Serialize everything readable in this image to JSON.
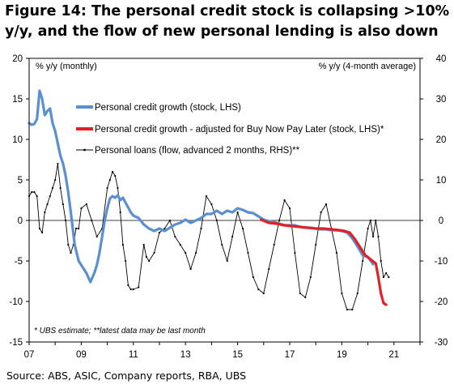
{
  "title": "Figure 14: The personal credit stock is collapsing >10% y/y, and the flow of new personal lending is also down",
  "source": "Source:  ABS, ASIC, Company reports, RBA, UBS",
  "colors": {
    "stock": "#5b8fd0",
    "adjusted": "#e32026",
    "flow": "#000000"
  },
  "chart_data": {
    "type": "line",
    "xlabel": "",
    "y_left_label": "% y/y (monthly)",
    "y_right_label": "% y/y (4-month average)",
    "note": "* UBS estimate; **latest data  may be last month",
    "xlim": [
      2007.0,
      2022.0
    ],
    "ylim_left": [
      -15,
      20
    ],
    "ylim_right": [
      -30,
      40
    ],
    "x_ticks": [
      {
        "value": 2007,
        "label": "07"
      },
      {
        "value": 2009,
        "label": "09"
      },
      {
        "value": 2011,
        "label": "11"
      },
      {
        "value": 2013,
        "label": "13"
      },
      {
        "value": 2015,
        "label": "15"
      },
      {
        "value": 2017,
        "label": "17"
      },
      {
        "value": 2019,
        "label": "19"
      },
      {
        "value": 2021,
        "label": "21"
      }
    ],
    "y_left_ticks": [
      {
        "value": 20,
        "label": "20"
      },
      {
        "value": 15,
        "label": "15"
      },
      {
        "value": 10,
        "label": "10"
      },
      {
        "value": 5,
        "label": "5"
      },
      {
        "value": 0,
        "label": "0"
      },
      {
        "value": -5,
        "label": "-5"
      },
      {
        "value": -10,
        "label": "-10"
      },
      {
        "value": -15,
        "label": "-15"
      }
    ],
    "y_right_ticks": [
      {
        "value": 40,
        "label": "40"
      },
      {
        "value": 30,
        "label": "30"
      },
      {
        "value": 20,
        "label": "20"
      },
      {
        "value": 10,
        "label": "10"
      },
      {
        "value": 0,
        "label": "0"
      },
      {
        "value": -10,
        "label": "-10"
      },
      {
        "value": -20,
        "label": "-20"
      },
      {
        "value": -30,
        "label": "-30"
      }
    ],
    "legend_position": "upper-middle",
    "series": [
      {
        "name": "Personal credit growth (stock, LHS)",
        "axis": "left",
        "x": [
          2007.0,
          2007.1,
          2007.2,
          2007.3,
          2007.4,
          2007.5,
          2007.6,
          2007.7,
          2007.8,
          2007.9,
          2008.0,
          2008.1,
          2008.2,
          2008.3,
          2008.4,
          2008.5,
          2008.6,
          2008.75,
          2008.9,
          2009.0,
          2009.2,
          2009.35,
          2009.5,
          2009.6,
          2009.7,
          2009.8,
          2009.9,
          2010.0,
          2010.1,
          2010.2,
          2010.3,
          2010.4,
          2010.5,
          2010.6,
          2010.7,
          2010.8,
          2010.9,
          2011.0,
          2011.2,
          2011.4,
          2011.6,
          2011.8,
          2012.0,
          2012.2,
          2012.4,
          2012.6,
          2012.8,
          2013.0,
          2013.2,
          2013.4,
          2013.6,
          2013.8,
          2014.0,
          2014.2,
          2014.4,
          2014.6,
          2014.8,
          2015.0,
          2015.2,
          2015.4,
          2015.6,
          2015.8,
          2016.0,
          2016.2,
          2016.4,
          2016.6,
          2016.8,
          2017.0,
          2017.2,
          2017.4,
          2017.6,
          2017.8,
          2018.0,
          2018.2,
          2018.4,
          2018.6,
          2018.8,
          2019.0,
          2019.2,
          2019.4,
          2019.6,
          2019.8,
          2020.0,
          2020.2
        ],
        "values": [
          12.0,
          11.8,
          11.9,
          12.5,
          16.0,
          15.0,
          13.0,
          13.5,
          13.8,
          12.0,
          11.0,
          9.5,
          8.0,
          7.0,
          5.5,
          3.5,
          1.0,
          -3.0,
          -5.0,
          -5.5,
          -6.5,
          -7.6,
          -6.5,
          -5.5,
          -4.0,
          -2.0,
          0.0,
          1.5,
          2.7,
          3.0,
          2.8,
          3.1,
          2.5,
          2.8,
          2.2,
          1.6,
          1.0,
          0.6,
          0.3,
          -0.5,
          -1.0,
          -1.3,
          -1.0,
          -1.3,
          -0.9,
          -0.5,
          -0.3,
          0.1,
          -0.3,
          0.0,
          0.3,
          0.8,
          0.8,
          1.2,
          0.8,
          1.2,
          1.0,
          1.5,
          1.3,
          1.0,
          0.9,
          0.5,
          0.1,
          -0.1,
          -0.2,
          -0.4,
          -0.6,
          -0.6,
          -0.6,
          -0.8,
          -0.9,
          -0.9,
          -1.0,
          -1.1,
          -1.1,
          -1.2,
          -1.2,
          -1.3,
          -1.5,
          -2.2,
          -3.2,
          -4.3,
          -4.5,
          -5.4
        ]
      },
      {
        "name": "Personal credit growth - adjusted for Buy Now Pay Later (stock, LHS)*",
        "axis": "left",
        "x": [
          2015.9,
          2016.2,
          2016.5,
          2016.8,
          2017.1,
          2017.4,
          2017.7,
          2018.0,
          2018.3,
          2018.6,
          2018.9,
          2019.1,
          2019.3,
          2019.5,
          2019.7,
          2019.9,
          2020.1,
          2020.3,
          2020.4,
          2020.5,
          2020.6,
          2020.7
        ],
        "values": [
          0.1,
          -0.3,
          -0.4,
          -0.6,
          -0.7,
          -0.8,
          -0.9,
          -1.0,
          -1.0,
          -1.1,
          -1.2,
          -1.3,
          -1.5,
          -2.3,
          -3.3,
          -4.3,
          -4.8,
          -5.3,
          -7.0,
          -9.0,
          -10.2,
          -10.4
        ]
      },
      {
        "name": "Personal loans (flow, advanced 2 months, RHS)**",
        "axis": "right",
        "x": [
          2007.0,
          2007.1,
          2007.2,
          2007.3,
          2007.4,
          2007.5,
          2007.6,
          2007.7,
          2007.8,
          2007.9,
          2008.0,
          2008.1,
          2008.2,
          2008.3,
          2008.4,
          2008.5,
          2008.6,
          2008.7,
          2008.8,
          2008.9,
          2009.0,
          2009.2,
          2009.4,
          2009.6,
          2009.8,
          2010.0,
          2010.1,
          2010.2,
          2010.3,
          2010.4,
          2010.5,
          2010.6,
          2010.7,
          2010.8,
          2010.9,
          2011.0,
          2011.2,
          2011.4,
          2011.5,
          2011.6,
          2011.8,
          2012.0,
          2012.2,
          2012.4,
          2012.6,
          2012.8,
          2013.0,
          2013.2,
          2013.4,
          2013.6,
          2013.8,
          2014.0,
          2014.2,
          2014.4,
          2014.6,
          2014.8,
          2015.0,
          2015.2,
          2015.4,
          2015.6,
          2015.8,
          2016.0,
          2016.2,
          2016.4,
          2016.6,
          2016.8,
          2017.0,
          2017.2,
          2017.4,
          2017.6,
          2017.8,
          2018.0,
          2018.2,
          2018.4,
          2018.6,
          2018.8,
          2019.0,
          2019.2,
          2019.4,
          2019.6,
          2019.8,
          2020.0,
          2020.1,
          2020.2,
          2020.3,
          2020.4,
          2020.5,
          2020.6,
          2020.7,
          2020.8
        ],
        "values": [
          6.0,
          7.0,
          7.0,
          6.0,
          -2.0,
          -3.0,
          2.0,
          4.0,
          6.0,
          8.0,
          10.0,
          14.0,
          8.0,
          4.0,
          0.0,
          -6.0,
          -8.0,
          -6.0,
          -2.0,
          -2.0,
          3.0,
          4.0,
          0.0,
          -4.0,
          -2.0,
          8.0,
          10.0,
          12.0,
          11.0,
          8.0,
          2.0,
          -6.0,
          -10.0,
          -16.0,
          -17.0,
          -17.0,
          -16.5,
          -6.0,
          -9.0,
          -10.0,
          -8.0,
          -3.0,
          -2.0,
          0.0,
          -4.0,
          -6.0,
          -8.0,
          -12.0,
          -8.0,
          -2.0,
          6.0,
          4.0,
          0.0,
          -6.0,
          -10.0,
          -4.0,
          2.0,
          -2.0,
          -8.0,
          -14.0,
          -17.0,
          -18.0,
          -12.0,
          -6.0,
          0.0,
          5.0,
          3.0,
          -8.0,
          -18.0,
          -19.0,
          -14.0,
          -6.0,
          2.0,
          4.0,
          -2.0,
          -8.0,
          -18.0,
          -22.0,
          -22.0,
          -18.0,
          -10.0,
          -2.0,
          0.0,
          -4.0,
          0.0,
          -4.0,
          -10.0,
          -14.0,
          -13.0,
          -14.0
        ]
      }
    ]
  }
}
